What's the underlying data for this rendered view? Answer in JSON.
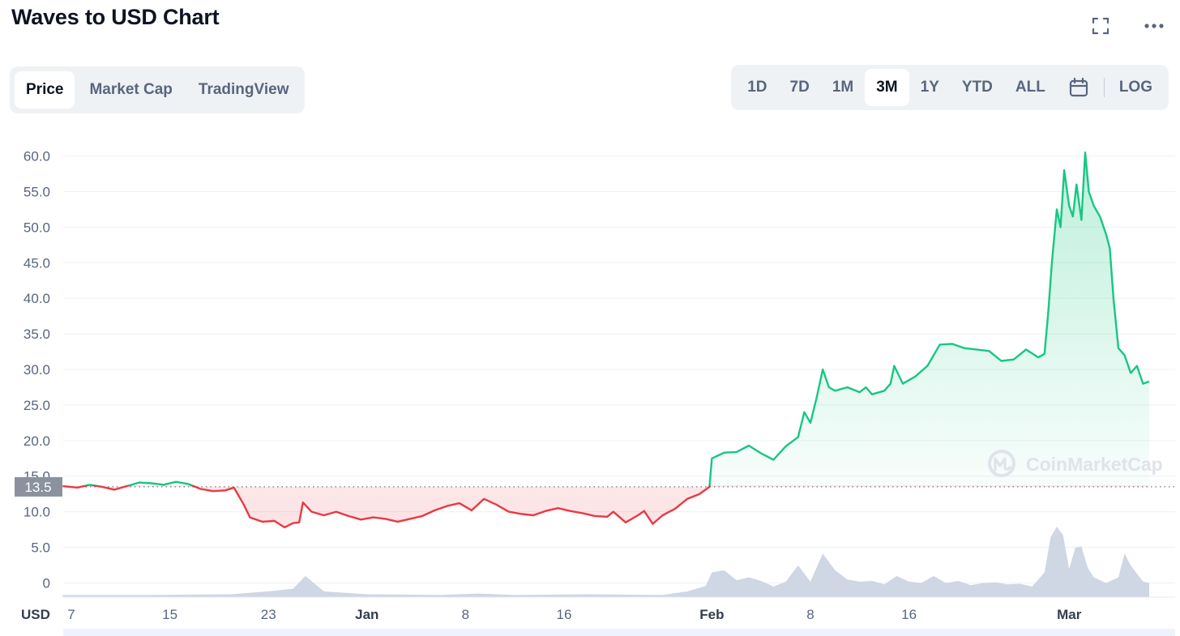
{
  "title": "Waves to USD Chart",
  "icons": {
    "fullscreen": "fullscreen-icon",
    "more": "more-dots-icon",
    "calendar": "calendar-icon",
    "watermark": "coinmarketcap-logo-icon"
  },
  "tabs": [
    {
      "label": "Price",
      "active": true
    },
    {
      "label": "Market Cap",
      "active": false
    },
    {
      "label": "TradingView",
      "active": false
    }
  ],
  "ranges": [
    {
      "label": "1D",
      "active": false
    },
    {
      "label": "7D",
      "active": false
    },
    {
      "label": "1M",
      "active": false
    },
    {
      "label": "3M",
      "active": true
    },
    {
      "label": "1Y",
      "active": false
    },
    {
      "label": "YTD",
      "active": false
    },
    {
      "label": "ALL",
      "active": false
    }
  ],
  "log_label": "LOG",
  "watermark": "CoinMarketCap",
  "colors": {
    "up": "#16c784",
    "down": "#ea3943",
    "volume": "#cfd6e4",
    "grid": "#eef0f3",
    "baseline_tag": "#8a929e"
  },
  "chart_data": {
    "type": "line",
    "currency_label": "USD",
    "baseline": 13.5,
    "baseline_label": "13.5",
    "ylim": [
      -2,
      62
    ],
    "y_ticks": [
      0,
      5,
      10,
      15,
      20,
      25,
      30,
      35,
      40,
      45,
      50,
      55,
      60
    ],
    "y_tick_labels": [
      "0",
      "5.0",
      "10.0",
      "15.0",
      "20.0",
      "25.0",
      "30.0",
      "35.0",
      "40.0",
      "45.0",
      "50.0",
      "55.0",
      "60.0"
    ],
    "xlim": [
      0,
      88
    ],
    "x_ticks": [
      {
        "day": 0,
        "label": "7",
        "bold": false
      },
      {
        "day": 8,
        "label": "15",
        "bold": false
      },
      {
        "day": 16,
        "label": "23",
        "bold": false
      },
      {
        "day": 24,
        "label": "Jan",
        "bold": true
      },
      {
        "day": 32,
        "label": "8",
        "bold": false
      },
      {
        "day": 40,
        "label": "16",
        "bold": false
      },
      {
        "day": 52,
        "label": "Feb",
        "bold": true
      },
      {
        "day": 60,
        "label": "8",
        "bold": false
      },
      {
        "day": 68,
        "label": "16",
        "bold": false
      },
      {
        "day": 81,
        "label": "Mar",
        "bold": true
      }
    ],
    "price": [
      [
        -0.7,
        13.6
      ],
      [
        0.5,
        13.4
      ],
      [
        1.5,
        13.8
      ],
      [
        2.5,
        13.5
      ],
      [
        3.5,
        13.1
      ],
      [
        4.5,
        13.6
      ],
      [
        5.5,
        14.1
      ],
      [
        6.5,
        14.0
      ],
      [
        7.5,
        13.8
      ],
      [
        8.5,
        14.2
      ],
      [
        9.5,
        13.9
      ],
      [
        10.5,
        13.2
      ],
      [
        11.5,
        12.9
      ],
      [
        12.5,
        13.0
      ],
      [
        13.2,
        13.4
      ],
      [
        13.6,
        12.2
      ],
      [
        14.0,
        11.0
      ],
      [
        14.5,
        9.2
      ],
      [
        15.5,
        8.6
      ],
      [
        16.5,
        8.7
      ],
      [
        17.3,
        7.8
      ],
      [
        18.0,
        8.4
      ],
      [
        18.5,
        8.5
      ],
      [
        18.8,
        11.3
      ],
      [
        19.5,
        10.0
      ],
      [
        20.5,
        9.5
      ],
      [
        21.5,
        10.0
      ],
      [
        22.5,
        9.4
      ],
      [
        23.5,
        8.9
      ],
      [
        24.5,
        9.2
      ],
      [
        25.5,
        9.0
      ],
      [
        26.5,
        8.6
      ],
      [
        27.5,
        9.0
      ],
      [
        28.5,
        9.4
      ],
      [
        29.5,
        10.2
      ],
      [
        30.5,
        10.8
      ],
      [
        31.5,
        11.2
      ],
      [
        32.5,
        10.2
      ],
      [
        33.5,
        11.8
      ],
      [
        34.5,
        11.0
      ],
      [
        35.5,
        10.0
      ],
      [
        36.5,
        9.7
      ],
      [
        37.5,
        9.5
      ],
      [
        38.5,
        10.1
      ],
      [
        39.5,
        10.5
      ],
      [
        40.5,
        10.1
      ],
      [
        41.5,
        9.8
      ],
      [
        42.5,
        9.4
      ],
      [
        43.5,
        9.3
      ],
      [
        44.0,
        10.0
      ],
      [
        45.0,
        8.5
      ],
      [
        46.0,
        9.5
      ],
      [
        46.5,
        10.1
      ],
      [
        47.2,
        8.3
      ],
      [
        48.0,
        9.5
      ],
      [
        49.0,
        10.4
      ],
      [
        50.0,
        11.8
      ],
      [
        51.0,
        12.5
      ],
      [
        51.8,
        13.5
      ],
      [
        52.0,
        17.5
      ],
      [
        53.0,
        18.3
      ],
      [
        54.0,
        18.4
      ],
      [
        55.0,
        19.3
      ],
      [
        56.0,
        18.2
      ],
      [
        57.0,
        17.3
      ],
      [
        58.0,
        19.2
      ],
      [
        59.0,
        20.5
      ],
      [
        59.5,
        24.0
      ],
      [
        60.0,
        22.5
      ],
      [
        60.5,
        26.0
      ],
      [
        61.0,
        30.0
      ],
      [
        61.5,
        27.5
      ],
      [
        62.0,
        27.0
      ],
      [
        63.0,
        27.5
      ],
      [
        64.0,
        26.8
      ],
      [
        64.5,
        27.5
      ],
      [
        65.0,
        26.5
      ],
      [
        66.0,
        27.0
      ],
      [
        66.5,
        28.0
      ],
      [
        66.8,
        30.5
      ],
      [
        67.5,
        28.0
      ],
      [
        68.5,
        29.0
      ],
      [
        69.5,
        30.5
      ],
      [
        70.5,
        33.5
      ],
      [
        71.5,
        33.6
      ],
      [
        72.5,
        33.0
      ],
      [
        73.5,
        32.8
      ],
      [
        74.5,
        32.6
      ],
      [
        75.5,
        31.2
      ],
      [
        76.5,
        31.4
      ],
      [
        77.5,
        32.8
      ],
      [
        78.5,
        31.7
      ],
      [
        79.0,
        32.2
      ],
      [
        79.3,
        38.0
      ],
      [
        79.6,
        45.0
      ],
      [
        80.0,
        52.5
      ],
      [
        80.3,
        50.0
      ],
      [
        80.6,
        58.0
      ],
      [
        81.0,
        53.0
      ],
      [
        81.3,
        51.5
      ],
      [
        81.6,
        56.0
      ],
      [
        82.0,
        51.0
      ],
      [
        82.3,
        60.5
      ],
      [
        82.6,
        55.0
      ],
      [
        83.0,
        53.0
      ],
      [
        83.5,
        51.5
      ],
      [
        84.0,
        49.0
      ],
      [
        84.3,
        47.0
      ],
      [
        84.6,
        40.0
      ],
      [
        85.0,
        33.0
      ],
      [
        85.5,
        32.0
      ],
      [
        86.0,
        29.5
      ],
      [
        86.5,
        30.5
      ],
      [
        87.0,
        28.0
      ],
      [
        87.5,
        28.3
      ]
    ],
    "volume": [
      [
        -0.7,
        0.03
      ],
      [
        6.5,
        0.03
      ],
      [
        13.0,
        0.04
      ],
      [
        16.5,
        0.09
      ],
      [
        18.0,
        0.12
      ],
      [
        19.0,
        0.3
      ],
      [
        20.5,
        0.08
      ],
      [
        24.0,
        0.04
      ],
      [
        30.0,
        0.03
      ],
      [
        33.0,
        0.05
      ],
      [
        36.0,
        0.03
      ],
      [
        42.0,
        0.04
      ],
      [
        48.0,
        0.03
      ],
      [
        50.0,
        0.08
      ],
      [
        51.5,
        0.16
      ],
      [
        52.0,
        0.35
      ],
      [
        53.0,
        0.38
      ],
      [
        54.0,
        0.24
      ],
      [
        55.0,
        0.28
      ],
      [
        56.0,
        0.23
      ],
      [
        57.0,
        0.15
      ],
      [
        58.0,
        0.22
      ],
      [
        59.0,
        0.45
      ],
      [
        60.0,
        0.22
      ],
      [
        61.0,
        0.62
      ],
      [
        62.0,
        0.38
      ],
      [
        63.0,
        0.25
      ],
      [
        64.0,
        0.22
      ],
      [
        65.0,
        0.23
      ],
      [
        66.0,
        0.18
      ],
      [
        67.0,
        0.3
      ],
      [
        68.0,
        0.22
      ],
      [
        69.0,
        0.2
      ],
      [
        70.0,
        0.3
      ],
      [
        71.0,
        0.2
      ],
      [
        72.0,
        0.23
      ],
      [
        73.0,
        0.17
      ],
      [
        74.0,
        0.2
      ],
      [
        75.0,
        0.21
      ],
      [
        76.0,
        0.18
      ],
      [
        77.0,
        0.19
      ],
      [
        78.0,
        0.15
      ],
      [
        79.0,
        0.35
      ],
      [
        79.5,
        0.85
      ],
      [
        80.0,
        1.0
      ],
      [
        80.5,
        0.88
      ],
      [
        81.0,
        0.4
      ],
      [
        81.5,
        0.7
      ],
      [
        82.0,
        0.72
      ],
      [
        82.5,
        0.42
      ],
      [
        83.0,
        0.28
      ],
      [
        84.0,
        0.2
      ],
      [
        85.0,
        0.28
      ],
      [
        85.5,
        0.62
      ],
      [
        86.0,
        0.45
      ],
      [
        87.0,
        0.22
      ],
      [
        87.5,
        0.2
      ]
    ]
  }
}
